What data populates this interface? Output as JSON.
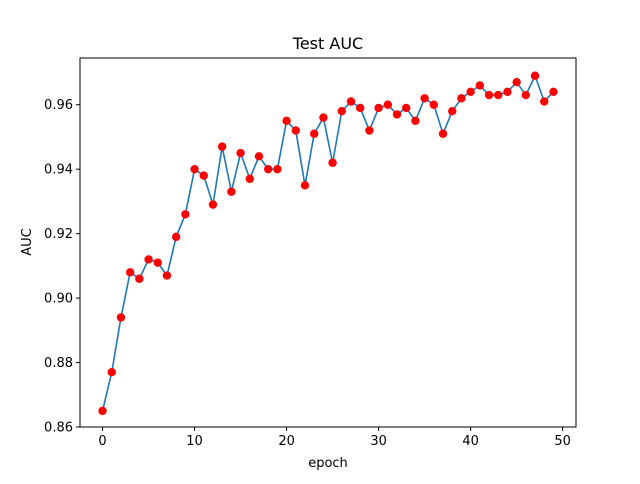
{
  "chart_data": {
    "type": "line",
    "title": "Test AUC",
    "xlabel": "epoch",
    "ylabel": "AUC",
    "xlim": [
      -2.45,
      51.45
    ],
    "ylim": [
      0.86,
      0.9745
    ],
    "xticks": [
      0,
      10,
      20,
      30,
      40,
      50
    ],
    "yticks": [
      0.86,
      0.88,
      0.9,
      0.92,
      0.94,
      0.96
    ],
    "xtick_labels": [
      "0",
      "10",
      "20",
      "30",
      "40",
      "50"
    ],
    "ytick_labels": [
      "0.86",
      "0.88",
      "0.90",
      "0.92",
      "0.94",
      "0.96"
    ],
    "grid": false,
    "legend": "none",
    "line_color": "#1f77b4",
    "marker_color": "#ff0000",
    "x": [
      0,
      1,
      2,
      3,
      4,
      5,
      6,
      7,
      8,
      9,
      10,
      11,
      12,
      13,
      14,
      15,
      16,
      17,
      18,
      19,
      20,
      21,
      22,
      23,
      24,
      25,
      26,
      27,
      28,
      29,
      30,
      31,
      32,
      33,
      34,
      35,
      36,
      37,
      38,
      39,
      40,
      41,
      42,
      43,
      44,
      45,
      46,
      47,
      48,
      49
    ],
    "y": [
      0.865,
      0.877,
      0.894,
      0.908,
      0.906,
      0.912,
      0.911,
      0.907,
      0.919,
      0.926,
      0.94,
      0.938,
      0.929,
      0.947,
      0.933,
      0.945,
      0.937,
      0.944,
      0.94,
      0.94,
      0.955,
      0.952,
      0.935,
      0.951,
      0.956,
      0.942,
      0.958,
      0.961,
      0.959,
      0.952,
      0.959,
      0.96,
      0.957,
      0.959,
      0.955,
      0.962,
      0.96,
      0.951,
      0.958,
      0.962,
      0.964,
      0.966,
      0.963,
      0.963,
      0.964,
      0.967,
      0.963,
      0.969,
      0.961,
      0.964
    ]
  }
}
